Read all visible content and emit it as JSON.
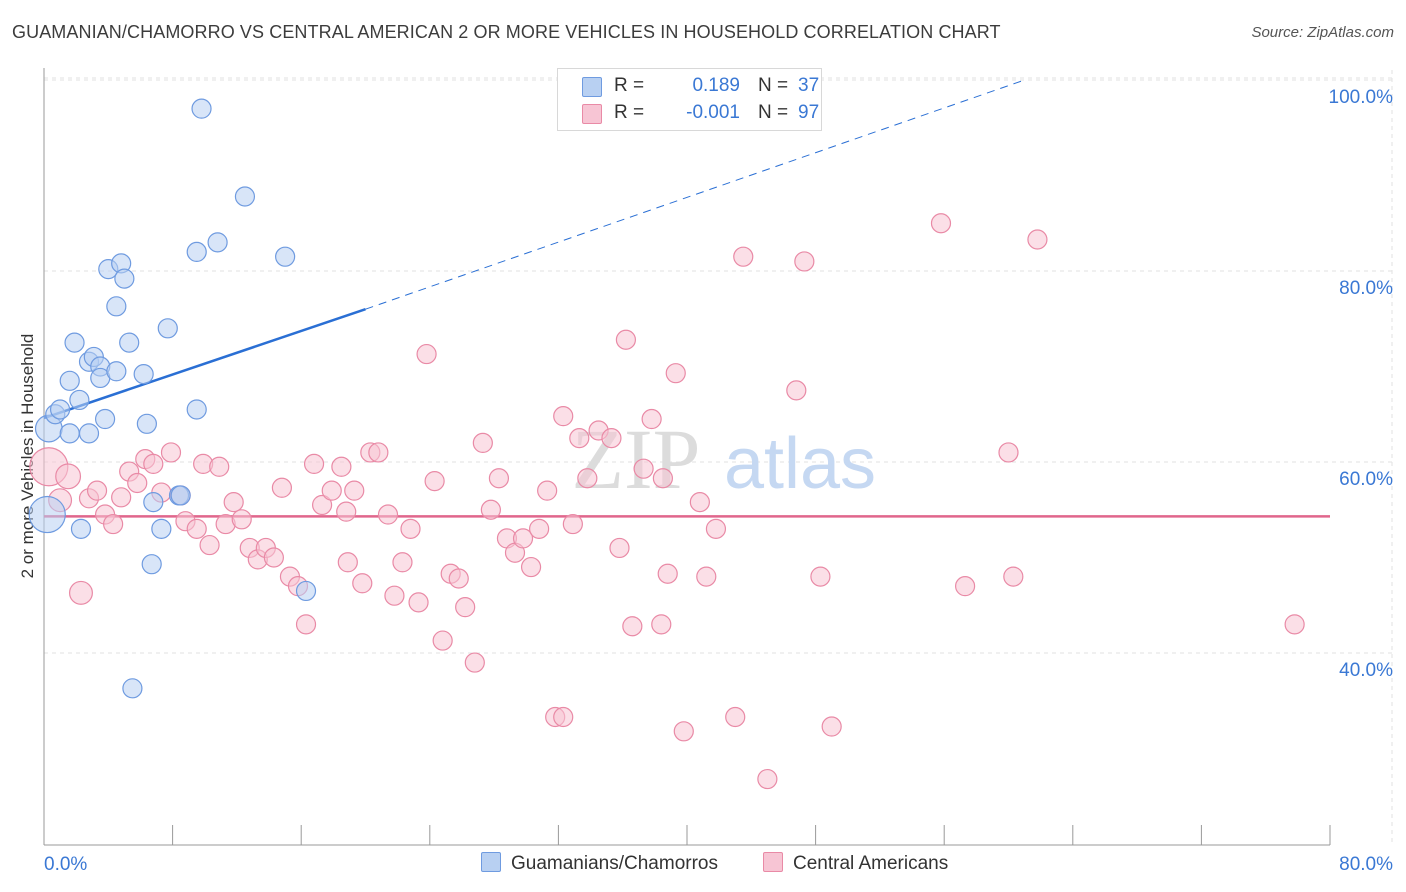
{
  "title": "GUAMANIAN/CHAMORRO VS CENTRAL AMERICAN 2 OR MORE VEHICLES IN HOUSEHOLD CORRELATION CHART",
  "source": "Source: ZipAtlas.com",
  "watermark": {
    "zip": "ZIP",
    "atlas": "atlas"
  },
  "colors": {
    "blue_fill": "#b8d0f2",
    "blue_stroke": "#6f9be0",
    "blue_line": "#2a6fd4",
    "pink_fill": "#f7c5d4",
    "pink_stroke": "#e98aa6",
    "pink_line": "#e0668c",
    "axis_text": "#3a78d4"
  },
  "legend": {
    "rows": [
      {
        "r_label": "R =",
        "r_value": "0.189",
        "n_label": "N =",
        "n_value": "37"
      },
      {
        "r_label": "R =",
        "r_value": "-0.001",
        "n_label": "N =",
        "n_value": "97"
      }
    ]
  },
  "bottom_legend": {
    "blue": "Guamanians/Chamorros",
    "pink": "Central Americans"
  },
  "chart_data": {
    "type": "scatter",
    "title": "GUAMANIAN/CHAMORRO VS CENTRAL AMERICAN 2 OR MORE VEHICLES IN HOUSEHOLD CORRELATION CHART",
    "xlabel": "",
    "ylabel": "2 or more Vehicles in Household",
    "xlim": [
      0,
      80
    ],
    "ylim": [
      20,
      102
    ],
    "x_tick_labels": [
      "0.0%",
      "80.0%"
    ],
    "y_ticks": [
      40,
      60,
      80,
      100
    ],
    "y_tick_labels": [
      "40.0%",
      "60.0%",
      "80.0%",
      "100.0%"
    ],
    "grid": true,
    "legend_position": "top-center",
    "series": [
      {
        "name": "Guamanians/Chamorros",
        "color": "#b8d0f2",
        "r": 0.189,
        "n": 37,
        "trend": {
          "x": [
            0,
            20
          ],
          "y": [
            64.6,
            76.0
          ],
          "dashed_to": [
            61,
            100
          ]
        },
        "points": [
          [
            0.2,
            54.5,
            1.9
          ],
          [
            0.3,
            63.5,
            1.4
          ],
          [
            0.7,
            65.0,
            1
          ],
          [
            1.0,
            65.5,
            1
          ],
          [
            1.6,
            68.5,
            1
          ],
          [
            1.6,
            63.0,
            1
          ],
          [
            1.9,
            72.5,
            1
          ],
          [
            2.2,
            66.5,
            1
          ],
          [
            2.3,
            53.0,
            1
          ],
          [
            2.8,
            70.5,
            1
          ],
          [
            2.8,
            63.0,
            1
          ],
          [
            3.1,
            71.0,
            1
          ],
          [
            3.5,
            70.0,
            1
          ],
          [
            3.5,
            68.8,
            1
          ],
          [
            3.8,
            64.5,
            1
          ],
          [
            4.0,
            80.2,
            1
          ],
          [
            4.5,
            69.5,
            1
          ],
          [
            4.5,
            76.3,
            1
          ],
          [
            4.8,
            80.8,
            1
          ],
          [
            5.0,
            79.2,
            1
          ],
          [
            5.3,
            72.5,
            1
          ],
          [
            5.5,
            36.3,
            1
          ],
          [
            6.2,
            69.2,
            1
          ],
          [
            6.4,
            64.0,
            1
          ],
          [
            6.7,
            49.3,
            1
          ],
          [
            6.8,
            55.8,
            1
          ],
          [
            7.3,
            53.0,
            1
          ],
          [
            7.7,
            74.0,
            1
          ],
          [
            8.4,
            56.5,
            1
          ],
          [
            9.5,
            65.5,
            1
          ],
          [
            9.5,
            82.0,
            1
          ],
          [
            9.8,
            97.0,
            1
          ],
          [
            10.8,
            83.0,
            1
          ],
          [
            12.5,
            87.8,
            1
          ],
          [
            15.0,
            81.5,
            1
          ],
          [
            16.3,
            46.5,
            1
          ],
          [
            8.5,
            56.5,
            1
          ]
        ]
      },
      {
        "name": "Central Americans",
        "color": "#f7c5d4",
        "r": -0.001,
        "n": 97,
        "trend": {
          "x": [
            0,
            80
          ],
          "y": [
            54.3,
            54.3
          ]
        },
        "points": [
          [
            0.3,
            59.5,
            2.0
          ],
          [
            1.0,
            56.0,
            1.2
          ],
          [
            1.5,
            58.5,
            1.3
          ],
          [
            2.3,
            46.3,
            1.2
          ],
          [
            2.8,
            56.2,
            1
          ],
          [
            3.3,
            57.0,
            1
          ],
          [
            3.8,
            54.5,
            1
          ],
          [
            4.3,
            53.5,
            1
          ],
          [
            4.8,
            56.3,
            1
          ],
          [
            5.3,
            59.0,
            1
          ],
          [
            5.8,
            57.8,
            1
          ],
          [
            6.3,
            60.3,
            1
          ],
          [
            6.8,
            59.8,
            1
          ],
          [
            7.3,
            56.8,
            1
          ],
          [
            7.9,
            61.0,
            1
          ],
          [
            8.5,
            56.5,
            1
          ],
          [
            8.8,
            53.8,
            1
          ],
          [
            9.5,
            53.0,
            1
          ],
          [
            9.9,
            59.8,
            1
          ],
          [
            10.3,
            51.3,
            1
          ],
          [
            10.9,
            59.5,
            1
          ],
          [
            11.3,
            53.5,
            1
          ],
          [
            11.8,
            55.8,
            1
          ],
          [
            12.3,
            54.0,
            1
          ],
          [
            12.8,
            51.0,
            1
          ],
          [
            13.3,
            49.8,
            1
          ],
          [
            13.8,
            51.0,
            1
          ],
          [
            14.3,
            50.0,
            1
          ],
          [
            14.8,
            57.3,
            1
          ],
          [
            15.3,
            48.0,
            1
          ],
          [
            15.8,
            47.0,
            1
          ],
          [
            16.3,
            43.0,
            1
          ],
          [
            16.8,
            59.8,
            1
          ],
          [
            17.3,
            55.5,
            1
          ],
          [
            17.9,
            57.0,
            1
          ],
          [
            18.5,
            59.5,
            1
          ],
          [
            18.9,
            49.5,
            1
          ],
          [
            19.3,
            57.0,
            1
          ],
          [
            19.8,
            47.3,
            1
          ],
          [
            20.3,
            61.0,
            1
          ],
          [
            20.8,
            61.0,
            1
          ],
          [
            21.4,
            54.5,
            1
          ],
          [
            21.8,
            46.0,
            1
          ],
          [
            22.3,
            49.5,
            1
          ],
          [
            22.8,
            53.0,
            1
          ],
          [
            23.3,
            45.3,
            1
          ],
          [
            23.8,
            71.3,
            1
          ],
          [
            24.3,
            58.0,
            1
          ],
          [
            24.8,
            41.3,
            1
          ],
          [
            25.3,
            48.3,
            1
          ],
          [
            25.8,
            47.8,
            1
          ],
          [
            26.2,
            44.8,
            1
          ],
          [
            26.8,
            39.0,
            1
          ],
          [
            27.3,
            62.0,
            1
          ],
          [
            27.8,
            55.0,
            1
          ],
          [
            28.3,
            58.3,
            1
          ],
          [
            28.8,
            52.0,
            1
          ],
          [
            29.3,
            50.5,
            1
          ],
          [
            29.8,
            52.0,
            1
          ],
          [
            30.3,
            49.0,
            1
          ],
          [
            30.8,
            53.0,
            1
          ],
          [
            31.3,
            57.0,
            1
          ],
          [
            31.8,
            33.3,
            1
          ],
          [
            32.3,
            64.8,
            1
          ],
          [
            32.9,
            53.5,
            1
          ],
          [
            33.3,
            62.5,
            1
          ],
          [
            33.8,
            58.3,
            1
          ],
          [
            34.5,
            63.3,
            1
          ],
          [
            35.3,
            62.5,
            1
          ],
          [
            35.8,
            51.0,
            1
          ],
          [
            36.2,
            72.8,
            1
          ],
          [
            36.6,
            42.8,
            1
          ],
          [
            37.3,
            59.3,
            1
          ],
          [
            37.8,
            64.5,
            1
          ],
          [
            38.4,
            43.0,
            1
          ],
          [
            38.8,
            48.3,
            1
          ],
          [
            39.3,
            69.3,
            1
          ],
          [
            39.8,
            31.8,
            1
          ],
          [
            40.8,
            55.8,
            1
          ],
          [
            41.2,
            48.0,
            1
          ],
          [
            41.8,
            53.0,
            1
          ],
          [
            43.0,
            33.3,
            1
          ],
          [
            43.5,
            81.5,
            1
          ],
          [
            45.0,
            26.8,
            1
          ],
          [
            46.8,
            67.5,
            1
          ],
          [
            47.3,
            81.0,
            1
          ],
          [
            48.3,
            48.0,
            1
          ],
          [
            49.0,
            32.3,
            1
          ],
          [
            55.8,
            85.0,
            1
          ],
          [
            57.3,
            47.0,
            1
          ],
          [
            60.0,
            61.0,
            1
          ],
          [
            60.3,
            48.0,
            1
          ],
          [
            61.8,
            83.3,
            1
          ],
          [
            77.8,
            43.0,
            1
          ],
          [
            32.3,
            33.3,
            1
          ],
          [
            38.5,
            58.3,
            1
          ],
          [
            18.8,
            54.8,
            1
          ]
        ]
      }
    ]
  }
}
